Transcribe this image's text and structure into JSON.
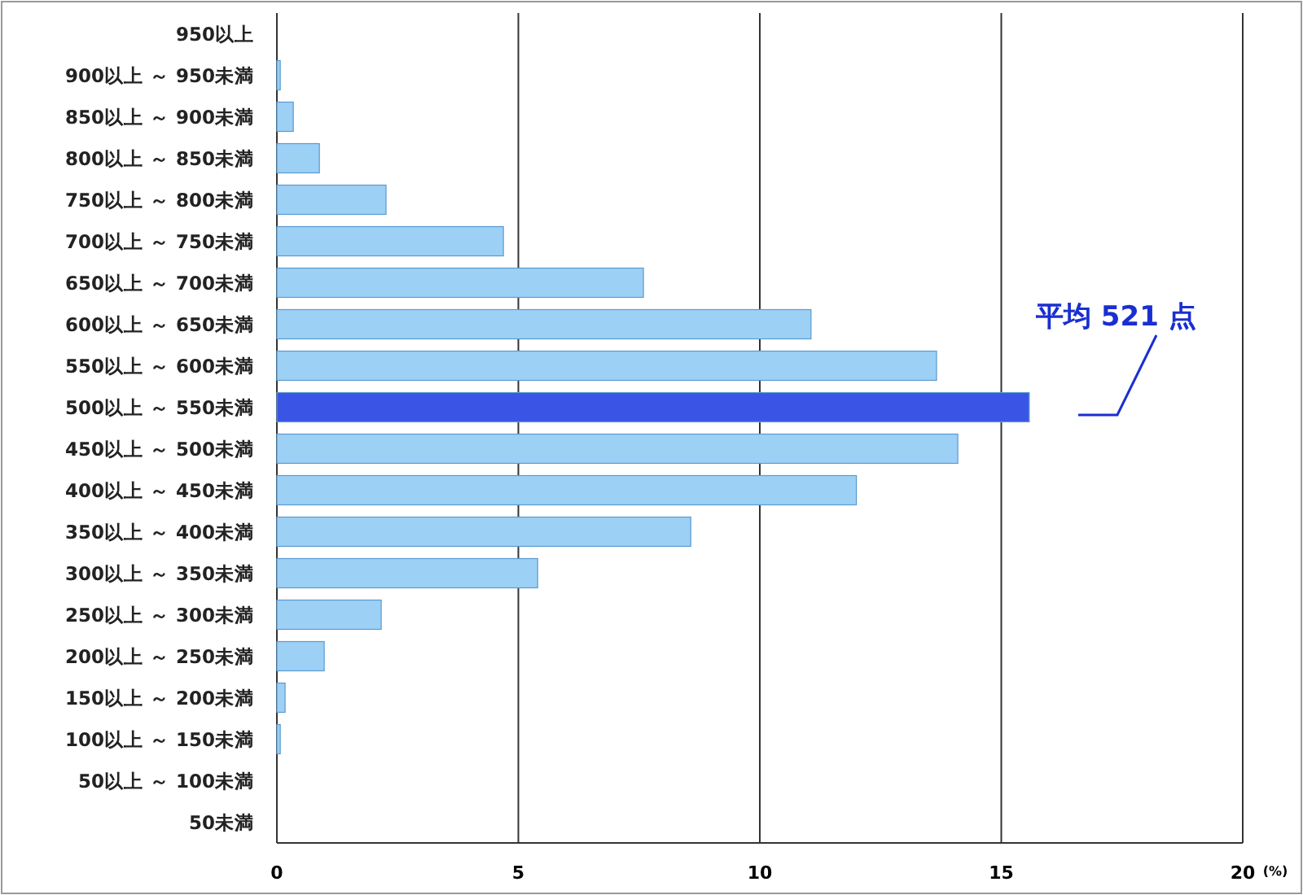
{
  "chart_data": {
    "type": "bar",
    "orientation": "horizontal",
    "xlabel": "(%)",
    "categories": [
      "950以上",
      "900以上 ～ 950未満",
      "850以上 ～ 900未満",
      "800以上 ～ 850未満",
      "750以上 ～ 800未満",
      "700以上 ～ 750未満",
      "650以上 ～ 700未満",
      "600以上 ～ 650未満",
      "550以上 ～ 600未満",
      "500以上 ～ 550未満",
      "450以上 ～ 500未満",
      "400以上 ～ 450未満",
      "350以上 ～ 400未満",
      "300以上 ～ 350未満",
      "250以上 ～ 300未満",
      "200以上 ～ 250未満",
      "150以上 ～ 200未満",
      "100以上 ～ 150未満",
      "50以上 ～ 100未満",
      "50未満"
    ],
    "values": [
      0,
      0.07,
      0.34,
      0.88,
      2.26,
      4.69,
      7.59,
      11.06,
      13.66,
      15.58,
      14.1,
      12.0,
      8.57,
      5.4,
      2.16,
      0.98,
      0.17,
      0.07,
      0,
      0
    ],
    "colors": [
      "#9dd0f5",
      "#9dd0f5",
      "#9dd0f5",
      "#9dd0f5",
      "#9dd0f5",
      "#9dd0f5",
      "#9dd0f5",
      "#9dd0f5",
      "#9dd0f5",
      "#3a55e6",
      "#9dd0f5",
      "#9dd0f5",
      "#9dd0f5",
      "#9dd0f5",
      "#9dd0f5",
      "#9dd0f5",
      "#9dd0f5",
      "#9dd0f5",
      "#9dd0f5",
      "#9dd0f5"
    ],
    "xlim": [
      0,
      20
    ],
    "xticks": [
      0,
      5,
      10,
      15,
      20
    ],
    "grid": "x",
    "annotations": [
      "平均 521 点"
    ]
  }
}
